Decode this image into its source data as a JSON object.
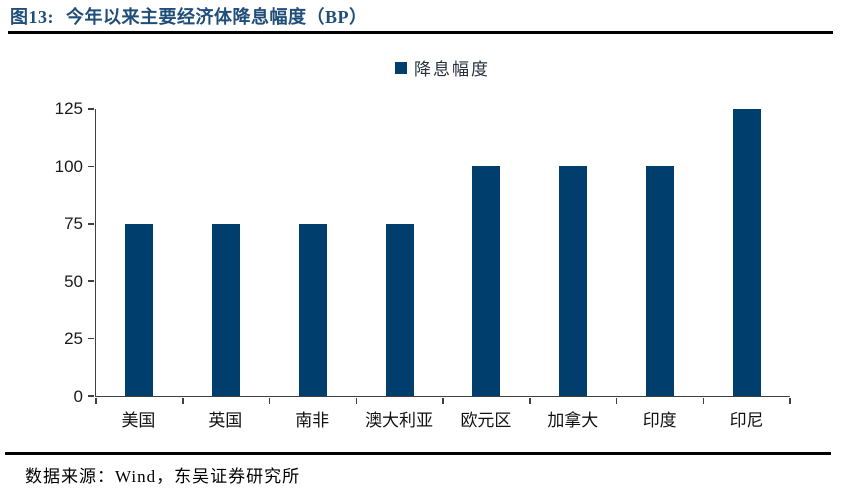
{
  "figure": {
    "title_prefix": "图13:",
    "title_text": "今年以来主要经济体降息幅度（BP）",
    "source": "数据来源：Wind，东吴证券研究所"
  },
  "chart_data": {
    "type": "bar",
    "title": "图13: 今年以来主要经济体降息幅度（BP）",
    "legend": [
      "降息幅度"
    ],
    "legend_position": "top-center",
    "categories": [
      "美国",
      "英国",
      "南非",
      "澳大利亚",
      "欧元区",
      "加拿大",
      "印度",
      "印尼"
    ],
    "series": [
      {
        "name": "降息幅度",
        "values": [
          75,
          75,
          75,
          75,
          100,
          100,
          100,
          125
        ]
      }
    ],
    "xlabel": "",
    "ylabel": "",
    "ylim": [
      0,
      125
    ],
    "y_ticks": [
      0,
      25,
      50,
      75,
      100,
      125
    ],
    "grid": false,
    "colors": {
      "bar": "#003E6E",
      "title": "#1F4E79",
      "axis": "#404040",
      "rule": "#000000"
    }
  }
}
